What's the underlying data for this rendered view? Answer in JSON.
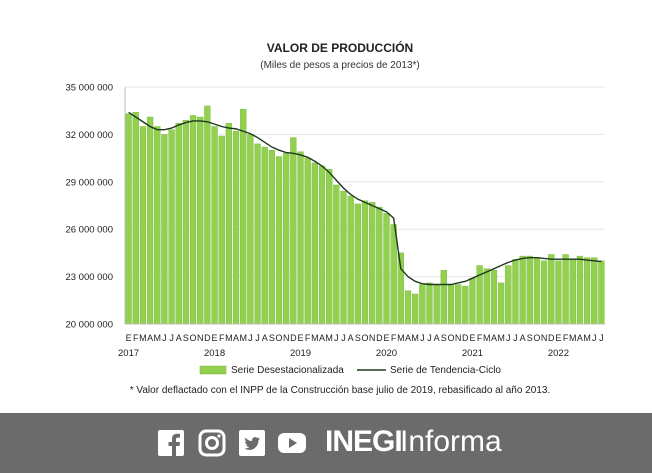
{
  "chart_data": {
    "type": "bar",
    "title": "VALOR DE PRODUCCIÓN",
    "subtitle": "(Miles de pesos a precios de 2013*)",
    "footnote": "* Valor deflactado con el INPP de la Construcción base julio de 2019, rebasificado al año 2013.",
    "ylim": [
      20000000,
      35000000
    ],
    "yticks": [
      {
        "value": 20000000,
        "label": "20 000 000"
      },
      {
        "value": 23000000,
        "label": "23 000 000"
      },
      {
        "value": 26000000,
        "label": "26 000 000"
      },
      {
        "value": 29000000,
        "label": "29 000 000"
      },
      {
        "value": 32000000,
        "label": "32 000 000"
      },
      {
        "value": 35000000,
        "label": "35 000 000"
      }
    ],
    "month_labels": [
      "E",
      "F",
      "M",
      "A",
      "M",
      "J",
      "J",
      "A",
      "S",
      "O",
      "N",
      "D"
    ],
    "years": [
      "2017",
      "2018",
      "2019",
      "2020",
      "2021",
      "2022"
    ],
    "bar_color": "#92d050",
    "bar_edge_color": "#7ab33c",
    "line_color": "#1e3a1e",
    "series": [
      {
        "name": "Serie Desestacionalizada",
        "kind": "bar",
        "values": [
          33300000,
          33400000,
          32500000,
          33100000,
          32500000,
          32000000,
          32300000,
          32700000,
          32900000,
          33200000,
          33100000,
          33800000,
          32500000,
          31900000,
          32700000,
          32200000,
          33600000,
          32000000,
          31400000,
          31200000,
          31000000,
          30600000,
          30800000,
          31800000,
          30900000,
          30500000,
          30200000,
          30000000,
          29800000,
          28800000,
          28400000,
          28100000,
          27600000,
          27800000,
          27700000,
          27400000,
          27000000,
          26300000,
          24500000,
          22100000,
          21900000,
          22500000,
          22600000,
          22500000,
          23400000,
          22500000,
          22500000,
          22400000,
          22900000,
          23700000,
          23500000,
          23400000,
          22600000,
          23700000,
          24100000,
          24300000,
          24300000,
          24200000,
          24000000,
          24400000,
          24000000,
          24400000,
          24100000,
          24300000,
          24200000,
          24200000,
          24000000
        ]
      },
      {
        "name": "Serie de Tendencia-Ciclo",
        "kind": "line",
        "values": [
          33400000,
          33100000,
          32800000,
          32500000,
          32300000,
          32300000,
          32400000,
          32600000,
          32750000,
          32850000,
          32850000,
          32800000,
          32650000,
          32500000,
          32400000,
          32350000,
          32200000,
          32050000,
          31800000,
          31500000,
          31200000,
          31000000,
          30850000,
          30800000,
          30700000,
          30550000,
          30300000,
          30000000,
          29600000,
          29100000,
          28600000,
          28200000,
          27900000,
          27700000,
          27500000,
          27300000,
          27100000,
          26700000,
          23500000,
          23000000,
          22700000,
          22550000,
          22500000,
          22500000,
          22500000,
          22500000,
          22600000,
          22700000,
          22900000,
          23100000,
          23300000,
          23500000,
          23700000,
          23900000,
          24050000,
          24150000,
          24200000,
          24200000,
          24150000,
          24100000,
          24100000,
          24100000,
          24100000,
          24100000,
          24050000,
          24000000,
          23950000
        ]
      }
    ]
  },
  "footer": {
    "brand_bold": "INEGI",
    "brand_light": "Informa",
    "icons": [
      "facebook-icon",
      "instagram-icon",
      "twitter-icon",
      "youtube-icon"
    ]
  }
}
